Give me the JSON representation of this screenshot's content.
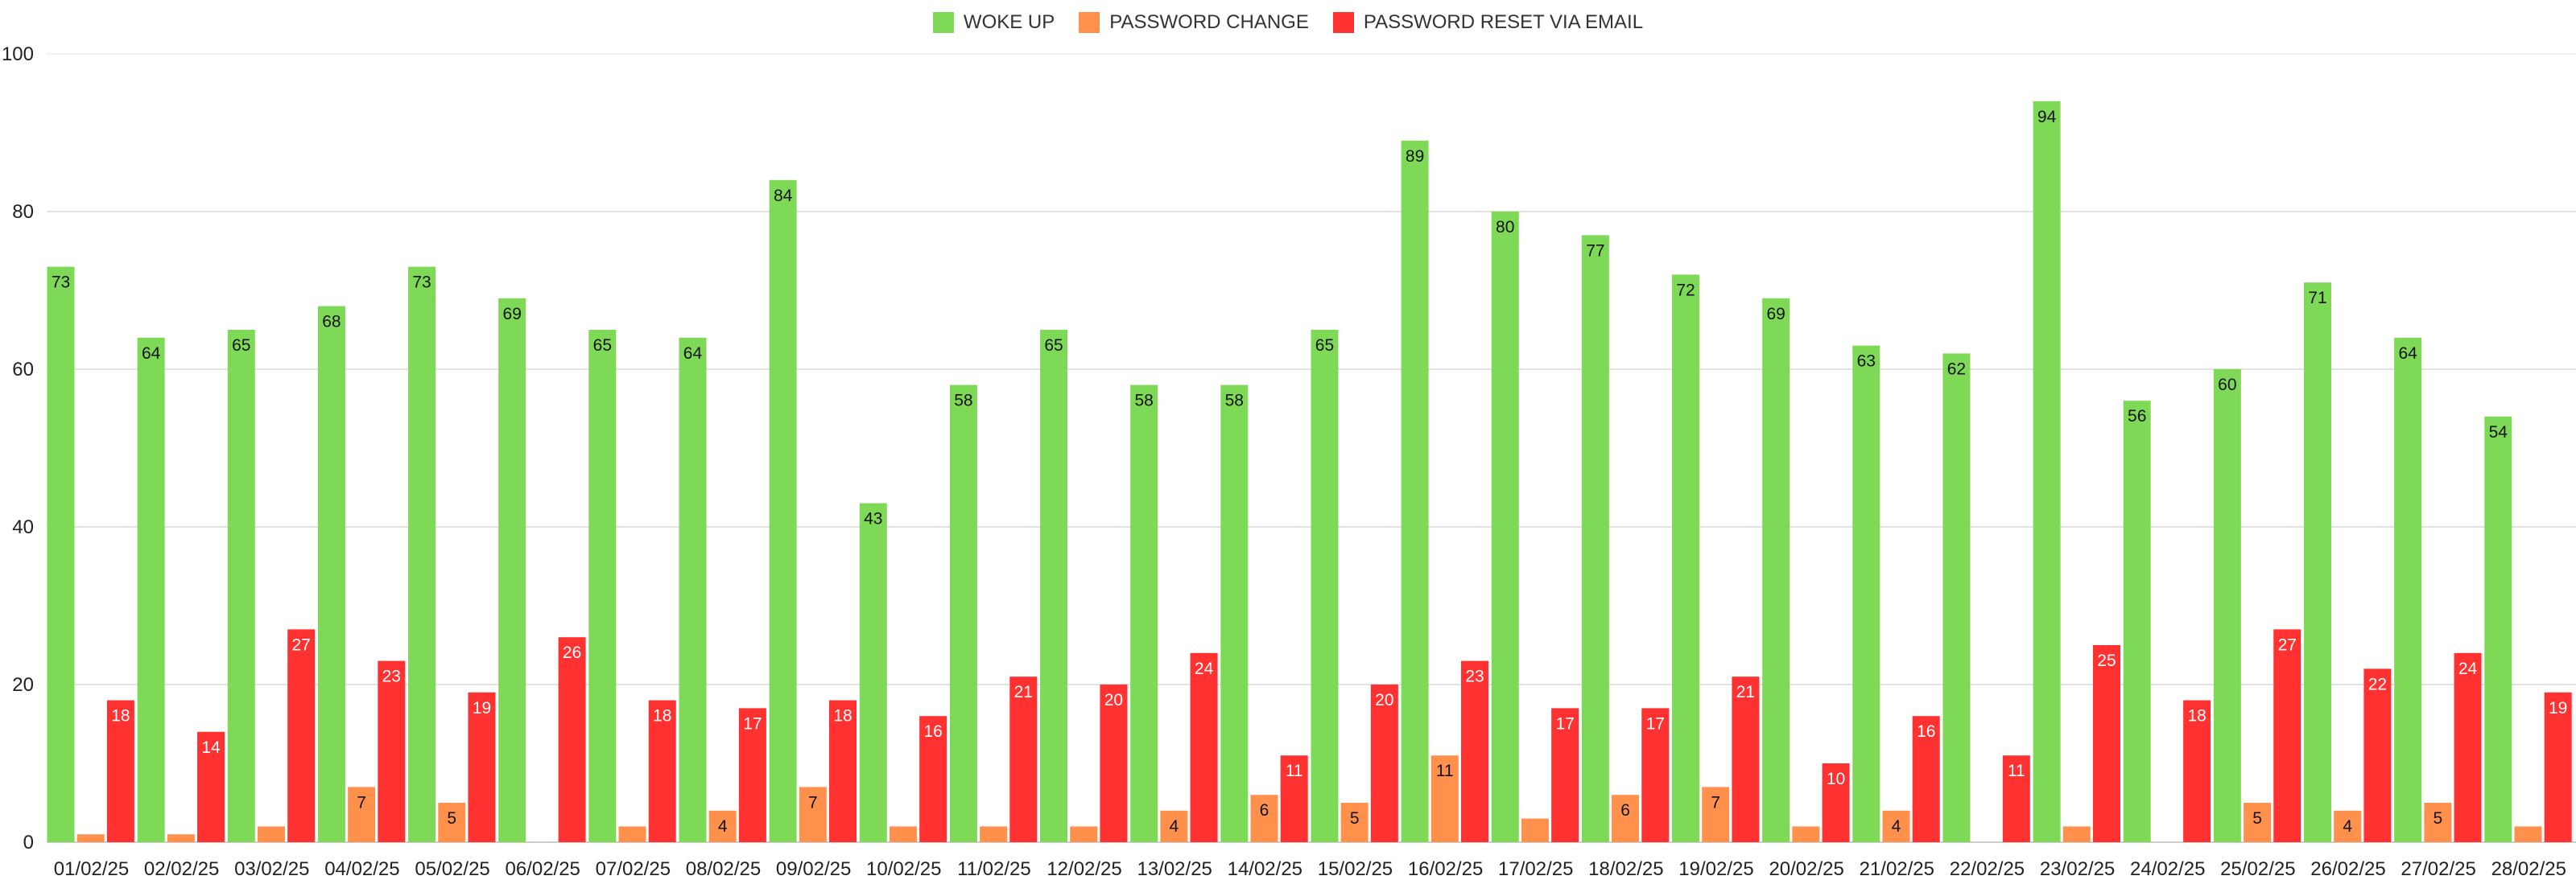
{
  "chart_data": {
    "type": "bar",
    "categories": [
      "01/02/25",
      "02/02/25",
      "03/02/25",
      "04/02/25",
      "05/02/25",
      "06/02/25",
      "07/02/25",
      "08/02/25",
      "09/02/25",
      "10/02/25",
      "11/02/25",
      "12/02/25",
      "13/02/25",
      "14/02/25",
      "15/02/25",
      "16/02/25",
      "17/02/25",
      "18/02/25",
      "19/02/25",
      "20/02/25",
      "21/02/25",
      "22/02/25",
      "23/02/25",
      "24/02/25",
      "25/02/25",
      "26/02/25",
      "27/02/25",
      "28/02/25"
    ],
    "series": [
      {
        "name": "WOKE UP",
        "color": "#7ed957",
        "values": [
          73,
          64,
          65,
          68,
          73,
          69,
          65,
          64,
          84,
          43,
          58,
          65,
          58,
          58,
          65,
          89,
          80,
          77,
          72,
          69,
          63,
          62,
          94,
          56,
          60,
          71,
          64,
          54
        ],
        "labels": [
          "73",
          "64",
          "65",
          "68",
          "73",
          "69",
          "65",
          "64",
          "84",
          "43",
          "58",
          "65",
          "58",
          "58",
          "65",
          "89",
          "80",
          "77",
          "72",
          "69",
          "63",
          "62",
          "94",
          "56",
          "60",
          "71",
          "64",
          "54"
        ]
      },
      {
        "name": "PASSWORD CHANGE",
        "color": "#ff914d",
        "values": [
          1,
          1,
          2,
          7,
          5,
          0,
          2,
          4,
          7,
          2,
          2,
          2,
          4,
          6,
          5,
          11,
          3,
          6,
          7,
          2,
          4,
          0,
          2,
          0,
          5,
          4,
          5,
          2
        ],
        "labels": [
          "",
          "",
          "",
          "7",
          "5",
          "",
          "",
          "4",
          "7",
          "",
          "",
          "",
          "4",
          "6",
          "5",
          "11",
          "",
          "6",
          "7",
          "",
          "4",
          "",
          "",
          "",
          "5",
          "4",
          "5",
          ""
        ]
      },
      {
        "name": "PASSWORD RESET VIA EMAIL",
        "color": "#ff3131",
        "values": [
          18,
          14,
          27,
          23,
          19,
          26,
          18,
          17,
          18,
          16,
          21,
          20,
          24,
          11,
          20,
          23,
          17,
          17,
          21,
          10,
          16,
          11,
          25,
          18,
          27,
          22,
          24,
          19
        ],
        "labels": [
          "18",
          "14",
          "27",
          "23",
          "19",
          "26",
          "18",
          "17",
          "18",
          "16",
          "21",
          "20",
          "24",
          "11",
          "20",
          "23",
          "17",
          "17",
          "21",
          "10",
          "16",
          "11",
          "25",
          "18",
          "27",
          "22",
          "24",
          "19"
        ]
      }
    ],
    "ylim": [
      0,
      100
    ],
    "yticks": [
      "0",
      "20",
      "40",
      "60",
      "80",
      "100"
    ],
    "grid": true,
    "legend": "top-center"
  }
}
